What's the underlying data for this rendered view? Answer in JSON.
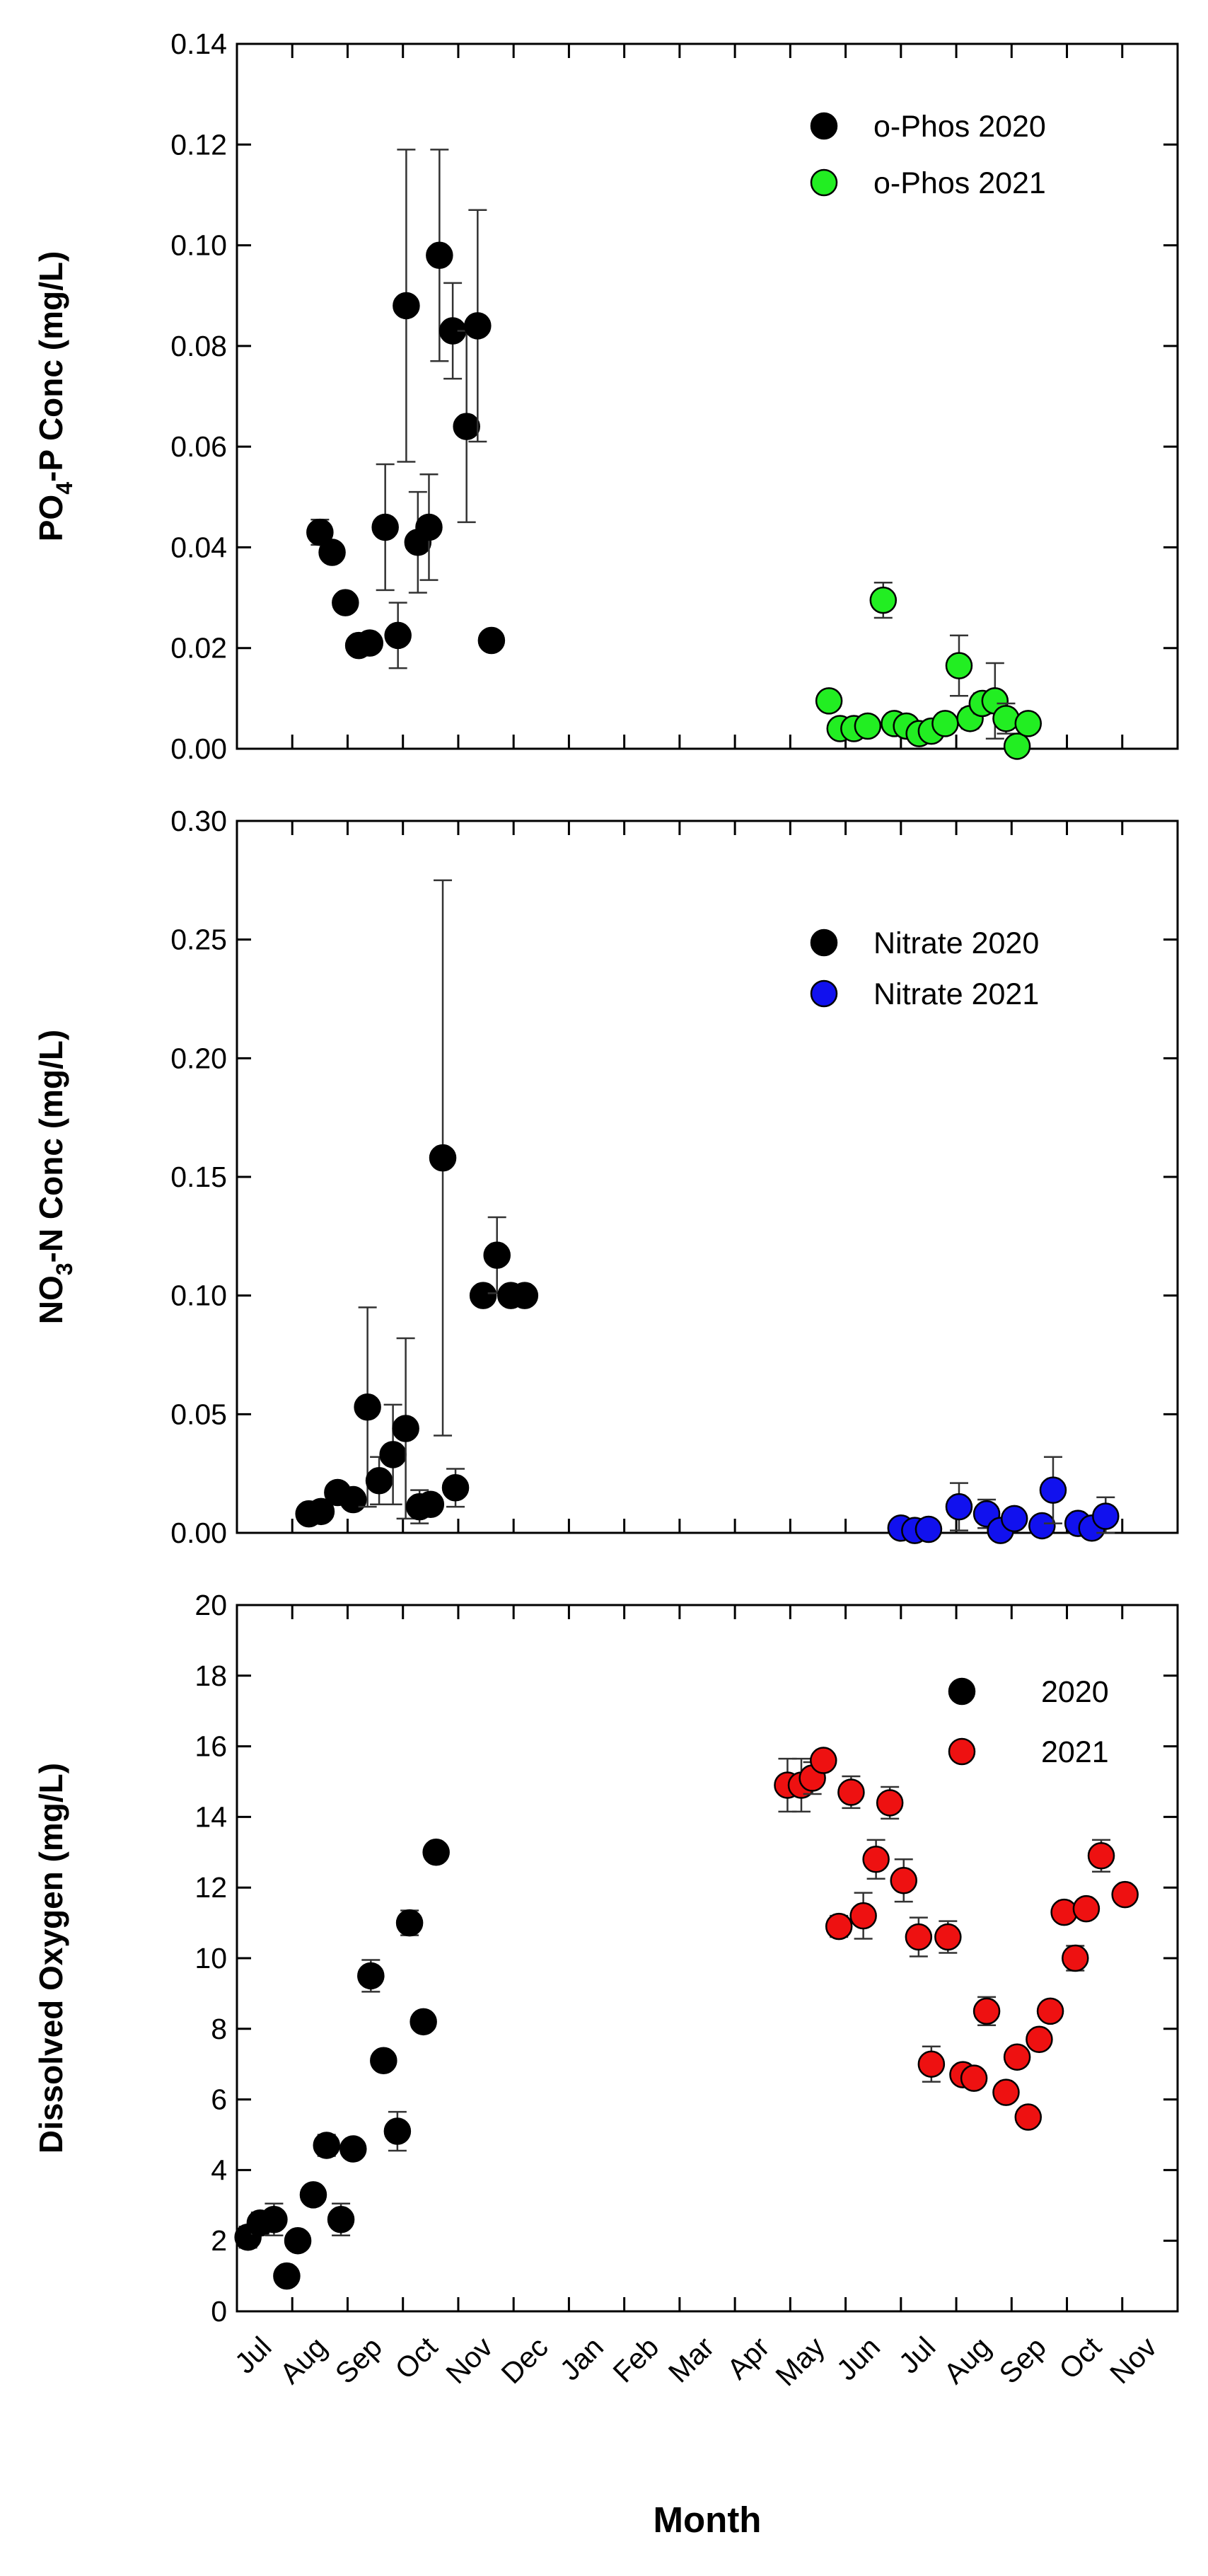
{
  "xlabel": "Month",
  "x_tick_labels": [
    "Jul",
    "Aug",
    "Sep",
    "Oct",
    "Nov",
    "Dec",
    "Jan",
    "Feb",
    "Mar",
    "Apr",
    "May",
    "Jun",
    "Jul",
    "Aug",
    "Sep",
    "Oct",
    "Nov"
  ],
  "chart_data": [
    {
      "type": "scatter",
      "ylabel_pre": "PO",
      "ylabel_sub": "4",
      "ylabel_post": "-P Conc (mg/L)",
      "ylim": [
        0,
        0.14
      ],
      "yticks": [
        0,
        0.02,
        0.04,
        0.06,
        0.08,
        0.1,
        0.12,
        0.14
      ],
      "ytick_labels": [
        "0.00",
        "0.02",
        "0.04",
        "0.06",
        "0.08",
        "0.10",
        "0.12",
        "0.14"
      ],
      "xlim": [
        0,
        17
      ],
      "legend_position": "top-right",
      "series": [
        {
          "name": "o-Phos 2020",
          "color": "#000000",
          "points": [
            {
              "x": 1.5,
              "y": 0.043,
              "err": 0.0025
            },
            {
              "x": 1.72,
              "y": 0.039,
              "err": 0.0015
            },
            {
              "x": 1.96,
              "y": 0.029,
              "err": 0.0015
            },
            {
              "x": 2.2,
              "y": 0.0205,
              "err": 0.0015
            },
            {
              "x": 2.4,
              "y": 0.021,
              "err": 0.001
            },
            {
              "x": 2.68,
              "y": 0.044,
              "err": 0.0125
            },
            {
              "x": 2.91,
              "y": 0.0225,
              "err": 0.0065
            },
            {
              "x": 3.06,
              "y": 0.088,
              "err": 0.031
            },
            {
              "x": 3.27,
              "y": 0.041,
              "err": 0.01
            },
            {
              "x": 3.47,
              "y": 0.044,
              "err": 0.0105
            },
            {
              "x": 3.66,
              "y": 0.098,
              "err": 0.021
            },
            {
              "x": 3.9,
              "y": 0.083,
              "err": 0.0095
            },
            {
              "x": 4.15,
              "y": 0.064,
              "err": 0.019
            },
            {
              "x": 4.35,
              "y": 0.084,
              "err": 0.023
            },
            {
              "x": 4.6,
              "y": 0.0215,
              "err": 0
            }
          ]
        },
        {
          "name": "o-Phos 2021",
          "color": "#22ee22",
          "points": [
            {
              "x": 10.7,
              "y": 0.0095,
              "err": 0
            },
            {
              "x": 10.9,
              "y": 0.004,
              "err": 0
            },
            {
              "x": 11.15,
              "y": 0.004,
              "err": 0
            },
            {
              "x": 11.4,
              "y": 0.0045,
              "err": 0
            },
            {
              "x": 11.68,
              "y": 0.0295,
              "err": 0.0035
            },
            {
              "x": 11.88,
              "y": 0.005,
              "err": 0
            },
            {
              "x": 12.1,
              "y": 0.0045,
              "err": 0
            },
            {
              "x": 12.33,
              "y": 0.003,
              "err": 0
            },
            {
              "x": 12.55,
              "y": 0.0035,
              "err": 0
            },
            {
              "x": 12.8,
              "y": 0.005,
              "err": 0
            },
            {
              "x": 13.05,
              "y": 0.0165,
              "err": 0.006
            },
            {
              "x": 13.25,
              "y": 0.006,
              "err": 0.002
            },
            {
              "x": 13.47,
              "y": 0.009,
              "err": 0.002
            },
            {
              "x": 13.7,
              "y": 0.0095,
              "err": 0.0075
            },
            {
              "x": 13.9,
              "y": 0.006,
              "err": 0.003
            },
            {
              "x": 14.1,
              "y": 0.0005,
              "err": 0.0015
            },
            {
              "x": 14.3,
              "y": 0.005,
              "err": 0
            }
          ]
        }
      ]
    },
    {
      "type": "scatter",
      "ylabel_pre": "NO",
      "ylabel_sub": "3",
      "ylabel_post": "-N Conc (mg/L)",
      "ylim": [
        0,
        0.3
      ],
      "yticks": [
        0,
        0.05,
        0.1,
        0.15,
        0.2,
        0.25,
        0.3
      ],
      "ytick_labels": [
        "0.00",
        "0.05",
        "0.10",
        "0.15",
        "0.20",
        "0.25",
        "0.30"
      ],
      "xlim": [
        0,
        17
      ],
      "legend_position": "top-right",
      "series": [
        {
          "name": "Nitrate 2020",
          "color": "#000000",
          "points": [
            {
              "x": 1.3,
              "y": 0.008,
              "err": 0
            },
            {
              "x": 1.52,
              "y": 0.009,
              "err": 0
            },
            {
              "x": 1.82,
              "y": 0.017,
              "err": 0
            },
            {
              "x": 2.1,
              "y": 0.014,
              "err": 0
            },
            {
              "x": 2.36,
              "y": 0.053,
              "err": 0.042
            },
            {
              "x": 2.57,
              "y": 0.022,
              "err": 0.01
            },
            {
              "x": 2.82,
              "y": 0.033,
              "err": 0.021
            },
            {
              "x": 3.05,
              "y": 0.044,
              "err": 0.038
            },
            {
              "x": 3.3,
              "y": 0.011,
              "err": 0.007
            },
            {
              "x": 3.5,
              "y": 0.012,
              "err": 0.004
            },
            {
              "x": 3.72,
              "y": 0.158,
              "err": 0.117
            },
            {
              "x": 3.95,
              "y": 0.019,
              "err": 0.008
            },
            {
              "x": 4.45,
              "y": 0.1,
              "err": 0
            },
            {
              "x": 4.7,
              "y": 0.117,
              "err": 0.016
            },
            {
              "x": 4.95,
              "y": 0.1,
              "err": 0
            },
            {
              "x": 5.2,
              "y": 0.1,
              "err": 0
            }
          ]
        },
        {
          "name": "Nitrate 2021",
          "color": "#1111ee",
          "points": [
            {
              "x": 12.0,
              "y": 0.002,
              "err": 0
            },
            {
              "x": 12.25,
              "y": 0.001,
              "err": 0
            },
            {
              "x": 12.5,
              "y": 0.0015,
              "err": 0
            },
            {
              "x": 13.05,
              "y": 0.011,
              "err": 0.01
            },
            {
              "x": 13.55,
              "y": 0.008,
              "err": 0.006
            },
            {
              "x": 13.8,
              "y": 0.001,
              "err": 0
            },
            {
              "x": 14.05,
              "y": 0.006,
              "err": 0
            },
            {
              "x": 14.55,
              "y": 0.003,
              "err": 0
            },
            {
              "x": 14.75,
              "y": 0.018,
              "err": 0.014
            },
            {
              "x": 15.2,
              "y": 0.004,
              "err": 0
            },
            {
              "x": 15.45,
              "y": 0.002,
              "err": 0
            },
            {
              "x": 15.7,
              "y": 0.007,
              "err": 0.008
            }
          ]
        }
      ]
    },
    {
      "type": "scatter",
      "ylabel_pre": "Dissolved Oxygen (mg/L)",
      "ylabel_sub": "",
      "ylabel_post": "",
      "ylim": [
        0,
        20
      ],
      "yticks": [
        0,
        2,
        4,
        6,
        8,
        10,
        12,
        14,
        16,
        18,
        20
      ],
      "ytick_labels": [
        "0",
        "2",
        "4",
        "6",
        "8",
        "10",
        "12",
        "14",
        "16",
        "18",
        "20"
      ],
      "xlim": [
        0,
        17
      ],
      "legend_position": "top-right",
      "series": [
        {
          "name": "2020",
          "color": "#000000",
          "points": [
            {
              "x": 0.2,
              "y": 2.1,
              "err": 0.3
            },
            {
              "x": 0.42,
              "y": 2.5,
              "err": 0.3
            },
            {
              "x": 0.67,
              "y": 2.6,
              "err": 0.45
            },
            {
              "x": 0.9,
              "y": 1.0,
              "err": 0
            },
            {
              "x": 1.1,
              "y": 2.0,
              "err": 0
            },
            {
              "x": 1.38,
              "y": 3.3,
              "err": 0
            },
            {
              "x": 1.62,
              "y": 4.7,
              "err": 0.3
            },
            {
              "x": 1.88,
              "y": 2.6,
              "err": 0.45
            },
            {
              "x": 2.1,
              "y": 4.6,
              "err": 0
            },
            {
              "x": 2.42,
              "y": 9.5,
              "err": 0.45
            },
            {
              "x": 2.65,
              "y": 7.1,
              "err": 0.25
            },
            {
              "x": 2.9,
              "y": 5.1,
              "err": 0.55
            },
            {
              "x": 3.12,
              "y": 11.0,
              "err": 0.35
            },
            {
              "x": 3.37,
              "y": 8.2,
              "err": 0.25
            },
            {
              "x": 3.6,
              "y": 13.0,
              "err": 0
            }
          ]
        },
        {
          "name": "2021",
          "color": "#ee1111",
          "points": [
            {
              "x": 9.95,
              "y": 14.9,
              "err": 0.75
            },
            {
              "x": 10.2,
              "y": 14.9,
              "err": 0.75
            },
            {
              "x": 10.4,
              "y": 15.1,
              "err": 0.45
            },
            {
              "x": 10.6,
              "y": 15.6,
              "err": 0
            },
            {
              "x": 10.88,
              "y": 10.9,
              "err": 0.3
            },
            {
              "x": 11.1,
              "y": 14.7,
              "err": 0.45
            },
            {
              "x": 11.32,
              "y": 11.2,
              "err": 0.65
            },
            {
              "x": 11.55,
              "y": 12.8,
              "err": 0.55
            },
            {
              "x": 11.8,
              "y": 14.4,
              "err": 0.45
            },
            {
              "x": 12.05,
              "y": 12.2,
              "err": 0.6
            },
            {
              "x": 12.32,
              "y": 10.6,
              "err": 0.55
            },
            {
              "x": 12.55,
              "y": 7.0,
              "err": 0.5
            },
            {
              "x": 12.85,
              "y": 10.6,
              "err": 0.45
            },
            {
              "x": 13.12,
              "y": 6.7,
              "err": 0
            },
            {
              "x": 13.32,
              "y": 6.6,
              "err": 0
            },
            {
              "x": 13.55,
              "y": 8.5,
              "err": 0.4
            },
            {
              "x": 13.9,
              "y": 6.2,
              "err": 0
            },
            {
              "x": 14.1,
              "y": 7.2,
              "err": 0
            },
            {
              "x": 14.3,
              "y": 5.5,
              "err": 0
            },
            {
              "x": 14.5,
              "y": 7.7,
              "err": 0
            },
            {
              "x": 14.7,
              "y": 8.5,
              "err": 0
            },
            {
              "x": 14.95,
              "y": 11.3,
              "err": 0
            },
            {
              "x": 15.15,
              "y": 10.0,
              "err": 0.35
            },
            {
              "x": 15.35,
              "y": 11.4,
              "err": 0
            },
            {
              "x": 15.62,
              "y": 12.9,
              "err": 0.45
            },
            {
              "x": 16.05,
              "y": 11.8,
              "err": 0
            }
          ]
        }
      ]
    }
  ]
}
